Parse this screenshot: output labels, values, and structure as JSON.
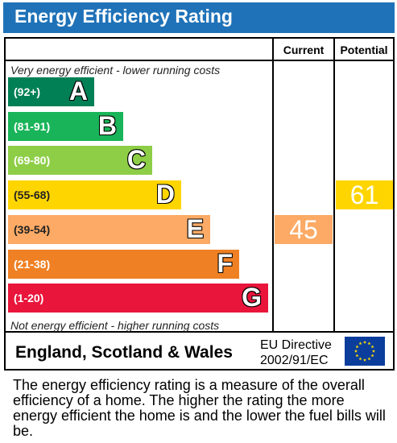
{
  "header": {
    "title": "Energy Efficiency Rating"
  },
  "columns": {
    "current_label": "Current",
    "potential_label": "Potential"
  },
  "notes": {
    "top": "Very energy efficient - lower running costs",
    "bottom": "Not energy efficient - higher running costs"
  },
  "footer": {
    "country": "England, Scotland & Wales",
    "directive_line1": "EU Directive",
    "directive_line2": "2002/91/EC",
    "flag_icon": "eu-flag-icon"
  },
  "description": "The energy efficiency rating is a measure of the overall efficiency of a home. The higher the rating the more energy efficient the home is and the lower the fuel bills will be.",
  "chart_data": {
    "type": "bar",
    "title": "Energy Efficiency Rating",
    "bands": [
      {
        "letter": "A",
        "range": "(92+)",
        "color": "#008054"
      },
      {
        "letter": "B",
        "range": "(81-91)",
        "color": "#19b459"
      },
      {
        "letter": "C",
        "range": "(69-80)",
        "color": "#8dce46"
      },
      {
        "letter": "D",
        "range": "(55-68)",
        "color": "#ffd500"
      },
      {
        "letter": "E",
        "range": "(39-54)",
        "color": "#fcaa65"
      },
      {
        "letter": "F",
        "range": "(21-38)",
        "color": "#ef8023"
      },
      {
        "letter": "G",
        "range": "(1-20)",
        "color": "#e9153b"
      }
    ],
    "current": {
      "value": 45,
      "band": "E",
      "color": "#fcaa65"
    },
    "potential": {
      "value": 61,
      "band": "D",
      "color": "#ffd500"
    }
  }
}
